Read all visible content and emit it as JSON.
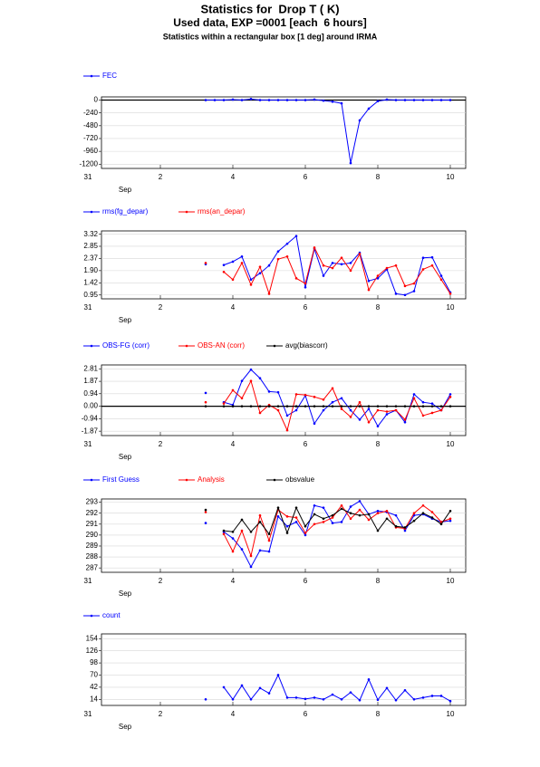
{
  "title": "Statistics for  Drop T ( K)",
  "subtitle": "Used data, EXP =0001 [each  6 hours]",
  "caption": "Statistics within a rectangular box [1 deg] around IRMA",
  "chart_data": [
    {
      "type": "line",
      "x_sublabel": "Sep",
      "x": [
        3.25,
        3.5,
        3.75,
        4.0,
        4.25,
        4.5,
        4.75,
        5.0,
        5.25,
        5.5,
        5.75,
        6.0,
        6.25,
        6.5,
        6.75,
        7.0,
        7.25,
        7.5,
        7.75,
        8.0,
        8.25,
        8.5,
        8.75,
        9.0,
        9.25,
        9.5,
        9.75,
        10.0
      ],
      "xlim": [
        0.375,
        10.425
      ],
      "xticks": [
        {
          "value": 0,
          "label": "31"
        },
        2,
        4,
        6,
        8,
        10
      ],
      "ylim": [
        -1280,
        60
      ],
      "yticks": [
        0,
        -240,
        -480,
        -720,
        -960,
        -1200
      ],
      "grid": true,
      "zero_line": true,
      "series": [
        {
          "name": "FEC",
          "color": "#0000ff",
          "values": [
            0,
            0,
            0,
            10,
            0,
            20,
            0,
            0,
            0,
            0,
            0,
            0,
            10,
            -10,
            -30,
            -60,
            -1180,
            -380,
            -160,
            -20,
            10,
            0,
            0,
            0,
            0,
            0,
            0,
            0
          ]
        }
      ]
    },
    {
      "type": "line",
      "x_sublabel": "Sep",
      "x": [
        3.25,
        3.5,
        3.75,
        4.0,
        4.25,
        4.5,
        4.75,
        5.0,
        5.25,
        5.5,
        5.75,
        6.0,
        6.25,
        6.5,
        6.75,
        7.0,
        7.25,
        7.5,
        7.75,
        8.0,
        8.25,
        8.5,
        8.75,
        9.0,
        9.25,
        9.5,
        9.75,
        10.0
      ],
      "xlim": [
        0.375,
        10.425
      ],
      "xticks": [
        {
          "value": 0,
          "label": "31"
        },
        2,
        4,
        6,
        8,
        10
      ],
      "ylim": [
        0.8,
        3.45
      ],
      "yticks": [
        0.95,
        1.42,
        {
          "value": 1.9,
          "label": "1.90"
        },
        2.37,
        2.85,
        3.32
      ],
      "grid": true,
      "zero_line": false,
      "series": [
        {
          "name": "rms(fg_depar)",
          "color": "#0000ff",
          "values": [
            2.15,
            null,
            2.12,
            2.25,
            2.45,
            1.55,
            1.8,
            2.1,
            2.65,
            2.95,
            3.25,
            1.25,
            2.75,
            1.7,
            2.2,
            2.15,
            2.2,
            2.6,
            1.5,
            1.6,
            1.95,
            1.0,
            0.95,
            1.1,
            2.4,
            2.42,
            1.7,
            1.05
          ]
        },
        {
          "name": "rms(an_depar)",
          "color": "#ff0000",
          "values": [
            2.2,
            null,
            1.85,
            1.55,
            2.2,
            1.35,
            2.05,
            1.0,
            2.35,
            2.45,
            1.6,
            1.4,
            2.8,
            2.1,
            2.0,
            2.4,
            1.9,
            2.55,
            1.15,
            1.7,
            2.0,
            2.1,
            1.3,
            1.4,
            1.95,
            2.1,
            1.55,
            1.0
          ]
        }
      ]
    },
    {
      "type": "line",
      "x_sublabel": "Sep",
      "x": [
        3.25,
        3.5,
        3.75,
        4.0,
        4.25,
        4.5,
        4.75,
        5.0,
        5.25,
        5.5,
        5.75,
        6.0,
        6.25,
        6.5,
        6.75,
        7.0,
        7.25,
        7.5,
        7.75,
        8.0,
        8.25,
        8.5,
        8.75,
        9.0,
        9.25,
        9.5,
        9.75,
        10.0
      ],
      "xlim": [
        0.375,
        10.425
      ],
      "xticks": [
        {
          "value": 0,
          "label": "31"
        },
        2,
        4,
        6,
        8,
        10
      ],
      "ylim": [
        -2.2,
        3.1
      ],
      "yticks": [
        -1.87,
        -0.94,
        {
          "value": 0,
          "label": "0.00"
        },
        0.94,
        1.87,
        2.81
      ],
      "grid": true,
      "zero_line": true,
      "series": [
        {
          "name": "OBS-FG (corr)",
          "color": "#0000ff",
          "values": [
            1.0,
            null,
            0.3,
            0.1,
            1.9,
            2.75,
            2.1,
            1.1,
            1.05,
            -0.7,
            -0.3,
            0.8,
            -1.3,
            -0.3,
            0.3,
            0.6,
            -0.3,
            -1.0,
            -0.2,
            -1.5,
            -0.6,
            -0.3,
            -1.2,
            0.9,
            0.3,
            0.2,
            -0.3,
            0.9
          ]
        },
        {
          "name": "OBS-AN (corr)",
          "color": "#ff0000",
          "values": [
            0.3,
            null,
            0.2,
            1.2,
            0.6,
            1.9,
            -0.5,
            0.1,
            -0.3,
            -1.8,
            0.9,
            0.85,
            0.7,
            0.5,
            1.35,
            -0.2,
            -0.8,
            0.3,
            -1.2,
            -0.3,
            -0.4,
            -0.3,
            -1.0,
            0.6,
            -0.7,
            -0.5,
            -0.3,
            0.7
          ]
        },
        {
          "name": "avg(biascorr)",
          "color": "#000000",
          "values": [
            0,
            null,
            0,
            0,
            0,
            0,
            0,
            0,
            0,
            0,
            0,
            0,
            0,
            0,
            0,
            0,
            0,
            0,
            0,
            0,
            0,
            0,
            0,
            0,
            0,
            0,
            0,
            0
          ]
        }
      ]
    },
    {
      "type": "line",
      "x_sublabel": "Sep",
      "x": [
        3.25,
        3.5,
        3.75,
        4.0,
        4.25,
        4.5,
        4.75,
        5.0,
        5.25,
        5.5,
        5.75,
        6.0,
        6.25,
        6.5,
        6.75,
        7.0,
        7.25,
        7.5,
        7.75,
        8.0,
        8.25,
        8.5,
        8.75,
        9.0,
        9.25,
        9.5,
        9.75,
        10.0
      ],
      "xlim": [
        0.375,
        10.425
      ],
      "xticks": [
        {
          "value": 0,
          "label": "31"
        },
        2,
        4,
        6,
        8,
        10
      ],
      "ylim": [
        286.6,
        293.3
      ],
      "yticks": [
        287,
        288,
        289,
        290,
        291,
        292,
        293
      ],
      "grid": true,
      "zero_line": false,
      "series": [
        {
          "name": "First Guess",
          "color": "#0000ff",
          "values": [
            291.1,
            null,
            290.3,
            289.7,
            288.7,
            287.1,
            288.6,
            288.5,
            291.7,
            290.8,
            291.2,
            290.0,
            292.7,
            292.5,
            291.1,
            291.2,
            292.6,
            293.1,
            291.9,
            292.2,
            292.1,
            291.8,
            290.4,
            291.8,
            291.9,
            291.5,
            291.2,
            291.3
          ]
        },
        {
          "name": "Analysis",
          "color": "#ff0000",
          "values": [
            292.1,
            null,
            290.1,
            288.5,
            290.4,
            288.1,
            291.8,
            289.5,
            292.3,
            291.7,
            291.6,
            290.2,
            291.0,
            291.2,
            291.6,
            292.7,
            291.5,
            292.3,
            291.4,
            292.0,
            292.2,
            290.7,
            290.6,
            292.0,
            292.7,
            292.1,
            291.2,
            291.5
          ]
        },
        {
          "name": "obsvalue",
          "color": "#000000",
          "values": [
            292.3,
            null,
            290.4,
            290.3,
            291.4,
            290.3,
            291.2,
            290.1,
            292.5,
            290.2,
            292.5,
            290.8,
            291.9,
            291.5,
            291.8,
            292.4,
            292.0,
            291.8,
            291.9,
            290.4,
            291.5,
            290.8,
            290.7,
            291.3,
            292.0,
            291.6,
            291.0,
            292.2
          ]
        }
      ]
    },
    {
      "type": "line",
      "x_sublabel": "Sep",
      "x": [
        3.25,
        3.5,
        3.75,
        4.0,
        4.25,
        4.5,
        4.75,
        5.0,
        5.25,
        5.5,
        5.75,
        6.0,
        6.25,
        6.5,
        6.75,
        7.0,
        7.25,
        7.5,
        7.75,
        8.0,
        8.25,
        8.5,
        8.75,
        9.0,
        9.25,
        9.5,
        9.75,
        10.0
      ],
      "xlim": [
        0.375,
        10.425
      ],
      "xticks": [
        {
          "value": 0,
          "label": "31"
        },
        2,
        4,
        6,
        8,
        10
      ],
      "ylim": [
        0,
        165
      ],
      "yticks": [
        14,
        42,
        70,
        98,
        126,
        154
      ],
      "grid": true,
      "zero_line": false,
      "series": [
        {
          "name": "count",
          "color": "#0000ff",
          "values": [
            14,
            null,
            42,
            14,
            46,
            14,
            40,
            28,
            70,
            18,
            18,
            15,
            18,
            14,
            25,
            14,
            30,
            12,
            60,
            13,
            40,
            12,
            35,
            14,
            18,
            22,
            22,
            10
          ]
        }
      ]
    }
  ]
}
